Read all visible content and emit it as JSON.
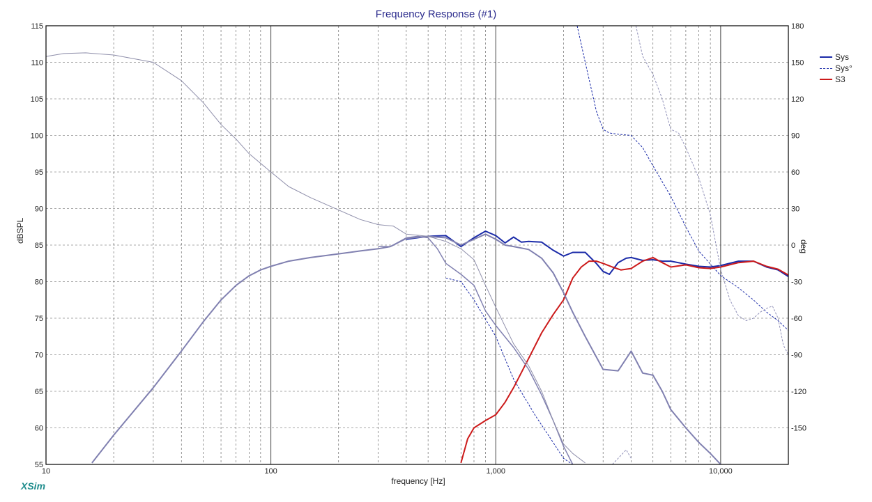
{
  "app": {
    "brand": "XSim"
  },
  "chart_data": {
    "type": "line",
    "title": "Frequency Response (#1)",
    "xlabel": "frequency [Hz]",
    "ylabel": "dBSPL",
    "y2label": "deg",
    "x_scale": "log",
    "xlim": [
      10,
      20000
    ],
    "ylim": [
      55,
      115
    ],
    "y2lim": [
      -180,
      180
    ],
    "grid": true,
    "legend_position": "top-right",
    "x_ticks": [
      {
        "value": 10,
        "label": "10"
      },
      {
        "value": 100,
        "label": "100"
      },
      {
        "value": 1000,
        "label": "1,000"
      },
      {
        "value": 10000,
        "label": "10,000"
      }
    ],
    "y_ticks": [
      55,
      60,
      65,
      70,
      75,
      80,
      85,
      90,
      95,
      100,
      105,
      110,
      115
    ],
    "y2_ticks": [
      -150,
      -120,
      -90,
      -60,
      -30,
      0,
      30,
      60,
      90,
      120,
      150,
      180
    ],
    "legend": [
      {
        "label": "Sys",
        "color": "#1a2aa8",
        "style": "solid"
      },
      {
        "label": "Sys°",
        "color": "#1a2aa8",
        "style": "dashed"
      },
      {
        "label": "S3",
        "color": "#cc1a1a",
        "style": "solid"
      }
    ],
    "series": [
      {
        "name": "Sys",
        "axis": "left",
        "color": "#1a2aa8",
        "width": 2,
        "style": "solid",
        "x": [
          400,
          500,
          600,
          700,
          800,
          900,
          1000,
          1100,
          1200,
          1300,
          1400,
          1600,
          1800,
          2000,
          2200,
          2500,
          2800,
          3000,
          3200,
          3500,
          3800,
          4000,
          4500,
          5000,
          5500,
          6000,
          7000,
          8000,
          9000,
          10000,
          12000,
          14000,
          16000,
          18000,
          20000
        ],
        "y": [
          85.8,
          86.2,
          86.3,
          84.8,
          86.0,
          86.9,
          86.3,
          85.3,
          86.1,
          85.4,
          85.5,
          85.4,
          84.3,
          83.5,
          84.0,
          84.0,
          82.5,
          81.4,
          81.0,
          82.6,
          83.2,
          83.3,
          82.9,
          83.0,
          82.8,
          82.8,
          82.4,
          82.1,
          82.0,
          82.2,
          82.8,
          82.8,
          82.0,
          81.6,
          80.7
        ]
      },
      {
        "name": "Sys°",
        "axis": "right",
        "color": "#1a2aa8",
        "width": 1,
        "style": "dashed",
        "x": [
          600,
          700,
          800,
          1000,
          1200,
          1500,
          1800,
          2000,
          2200,
          2250,
          2300,
          2500,
          2800,
          3000,
          3200,
          3500,
          4000,
          4500,
          5000,
          6000,
          7000,
          8000,
          10000,
          12000,
          14000,
          16000,
          18000,
          20000
        ],
        "y": [
          -27,
          -30,
          -45,
          -75,
          -110,
          -140,
          -162,
          -175,
          -180,
          -180,
          180,
          150,
          110,
          95,
          92,
          91,
          90,
          80,
          65,
          40,
          15,
          -5,
          -25,
          -35,
          -45,
          -55,
          -62,
          -70
        ]
      },
      {
        "name": "S3",
        "axis": "left",
        "color": "#cc1a1a",
        "width": 2,
        "style": "solid",
        "x": [
          700,
          750,
          800,
          900,
          1000,
          1100,
          1200,
          1400,
          1600,
          1800,
          2000,
          2200,
          2400,
          2600,
          2800,
          3000,
          3300,
          3600,
          4000,
          4500,
          5000,
          5500,
          6000,
          7000,
          8000,
          9000,
          10000,
          12000,
          14000,
          16000,
          18000,
          20000
        ],
        "y": [
          55.2,
          58.5,
          60.0,
          61.0,
          61.8,
          63.5,
          65.5,
          69.5,
          73.0,
          75.5,
          77.5,
          80.5,
          82.0,
          82.8,
          82.8,
          82.5,
          82.0,
          81.6,
          81.8,
          82.8,
          83.3,
          82.6,
          82.0,
          82.3,
          81.9,
          81.8,
          82.0,
          82.6,
          82.8,
          82.1,
          81.7,
          80.9
        ]
      },
      {
        "name": "",
        "axis": "left",
        "color": "#8080b0",
        "width": 2,
        "style": "solid",
        "x": [
          16,
          20,
          30,
          40,
          50,
          60,
          70,
          80,
          90,
          100,
          120,
          150,
          200,
          250,
          300,
          340,
          400,
          500,
          600,
          700,
          800,
          900,
          1000,
          1100,
          1200,
          1400,
          1600,
          1800,
          2000,
          2200,
          2500,
          3000,
          3500,
          4000,
          4500,
          5000,
          5500,
          6000,
          7000,
          8000,
          9000,
          10000
        ],
        "y": [
          55.2,
          59.0,
          65.5,
          70.5,
          74.5,
          77.5,
          79.5,
          80.8,
          81.6,
          82.1,
          82.8,
          83.3,
          83.8,
          84.2,
          84.5,
          84.8,
          85.9,
          86.2,
          86.0,
          85.0,
          85.8,
          86.5,
          85.8,
          85.0,
          84.8,
          84.4,
          83.2,
          81.2,
          78.5,
          75.8,
          72.5,
          68.0,
          67.8,
          70.5,
          67.5,
          67.2,
          65.0,
          62.5,
          60.0,
          58.0,
          56.5,
          55.0
        ]
      },
      {
        "name": "",
        "axis": "left",
        "color": "#8080b0",
        "width": 1.5,
        "style": "solid",
        "x": [
          300,
          340,
          400,
          450,
          500,
          550,
          600,
          700,
          800,
          900,
          1000,
          1200,
          1400,
          1600,
          1800,
          2000,
          2200
        ],
        "y": [
          84.8,
          84.8,
          86.0,
          86.2,
          86.0,
          84.5,
          82.5,
          81.0,
          79.5,
          76.0,
          74.0,
          71.0,
          68.0,
          64.5,
          61.0,
          57.5,
          55.0
        ]
      },
      {
        "name": "",
        "axis": "left",
        "color": "#8e8eaa",
        "width": 1,
        "style": "solid",
        "x": [
          10,
          12,
          15,
          20,
          30,
          40,
          50,
          60,
          70,
          80,
          100,
          120,
          150,
          200,
          250,
          300,
          350,
          400,
          500,
          600,
          700,
          800,
          900,
          1000,
          1200,
          1400,
          1600,
          1800,
          2000,
          2200,
          2500
        ],
        "y": [
          110.8,
          111.2,
          111.3,
          111.0,
          110.0,
          107.5,
          104.5,
          101.5,
          99.5,
          97.5,
          95.0,
          93.0,
          91.5,
          89.8,
          88.5,
          87.8,
          87.6,
          86.5,
          86.2,
          85.5,
          84.5,
          83.0,
          79.5,
          76.5,
          71.5,
          68.5,
          65.0,
          61.0,
          57.8,
          56.5,
          55.2
        ]
      },
      {
        "name": "",
        "axis": "right",
        "color": "#9090b8",
        "width": 1,
        "style": "dashed",
        "x": [
          2600,
          2800,
          3000,
          3200,
          3300,
          3500,
          3800,
          4000,
          4200,
          4500,
          5000,
          5500,
          6000,
          6500,
          7000,
          8000,
          9000,
          10000,
          11000,
          12000,
          13000,
          14000,
          15000,
          16000,
          17000,
          18000,
          19000,
          20000
        ],
        "y": [
          180,
          180,
          180,
          180,
          -180,
          -175,
          -168,
          -175,
          180,
          155,
          140,
          120,
          95,
          92,
          80,
          55,
          25,
          -20,
          -45,
          -58,
          -62,
          -60,
          -55,
          -52,
          -50,
          -60,
          -82,
          -90
        ]
      }
    ]
  }
}
